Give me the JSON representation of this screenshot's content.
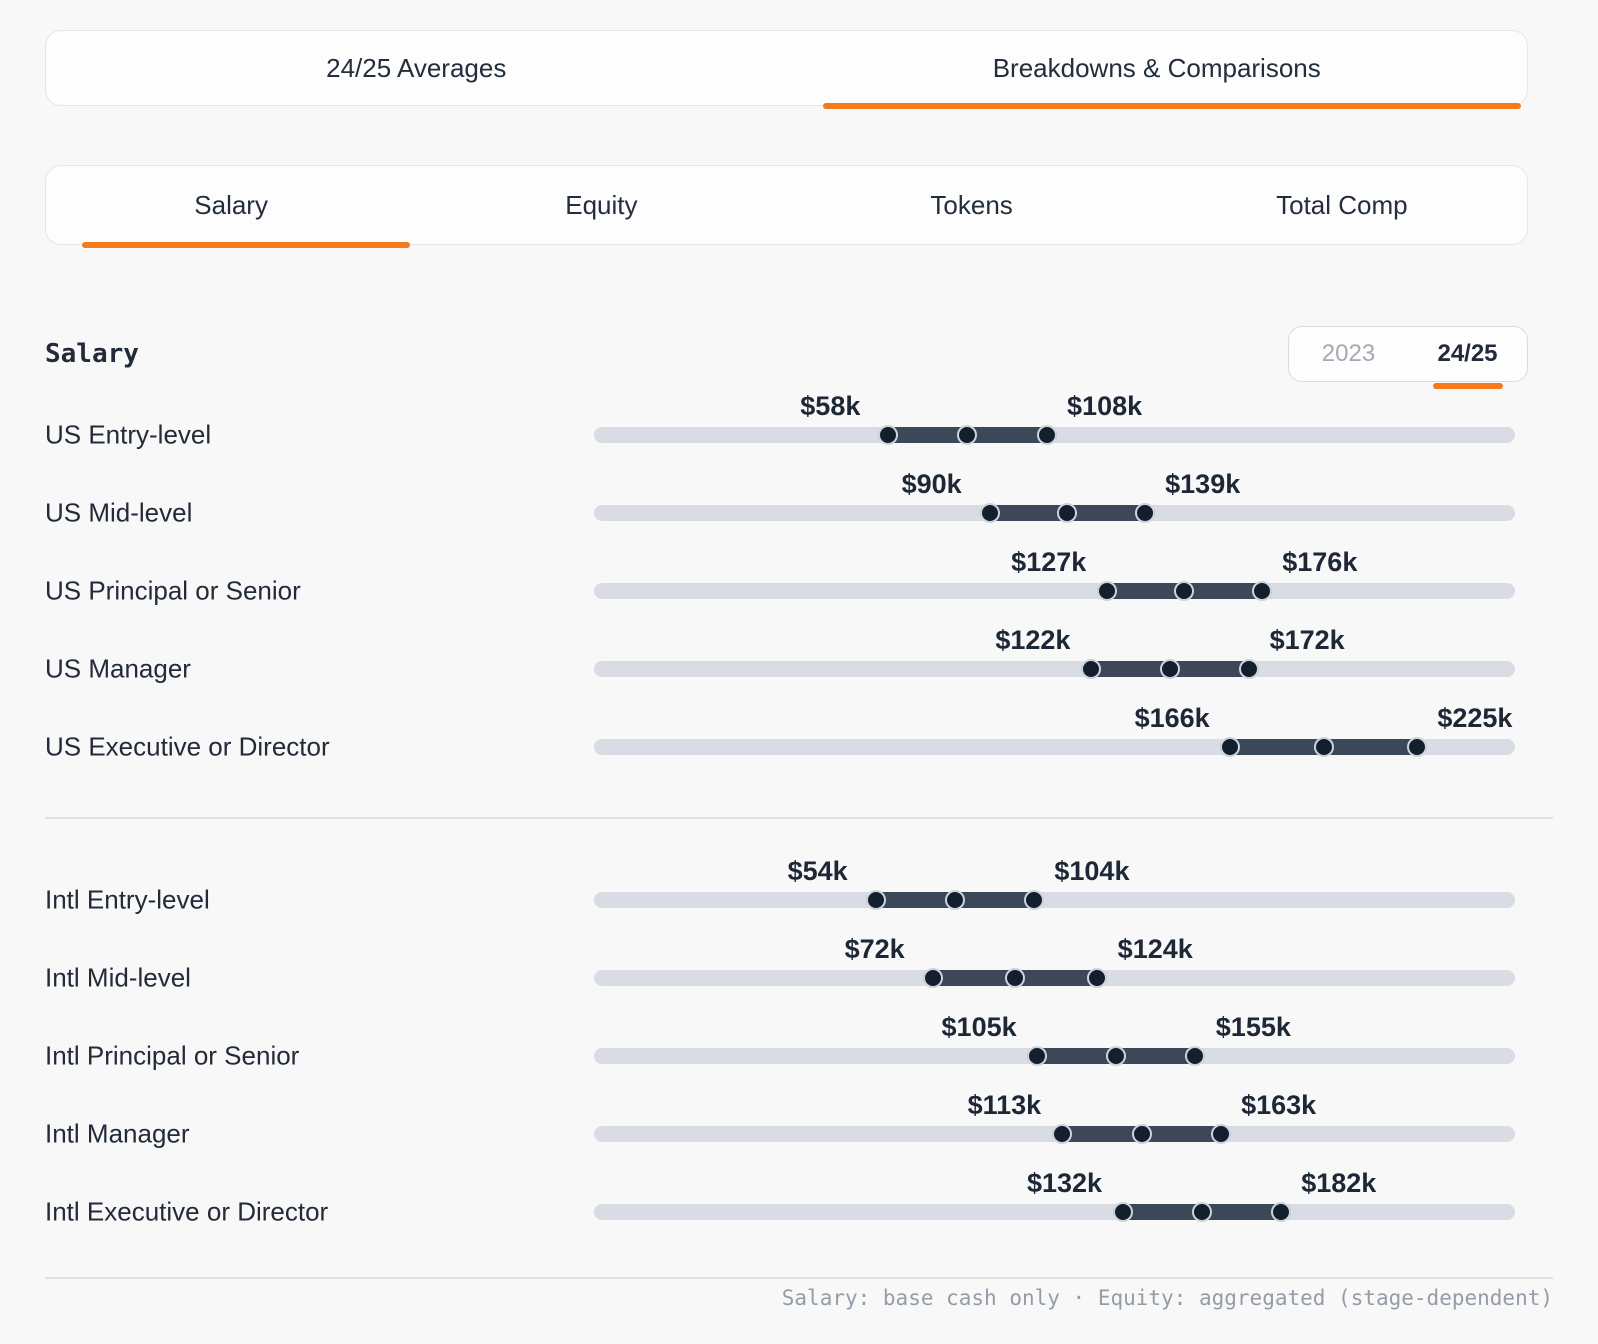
{
  "nav_tabs": {
    "items": [
      {
        "label": "24/25 Averages",
        "active": false
      },
      {
        "label": "Breakdowns & Comparisons",
        "active": true
      }
    ]
  },
  "metric_tabs": {
    "items": [
      {
        "label": "Salary",
        "active": true
      },
      {
        "label": "Equity",
        "active": false
      },
      {
        "label": "Tokens",
        "active": false
      },
      {
        "label": "Total Comp",
        "active": false
      }
    ]
  },
  "section": {
    "heading": "Salary"
  },
  "year_toggle": {
    "options": [
      {
        "label": "2023",
        "active": false
      },
      {
        "label": "24/25",
        "active": true
      }
    ]
  },
  "footer": {
    "note": "Salary: base cash only · Equity: aggregated (stage-dependent)"
  },
  "colors": {
    "accent_orange": "#f5791d",
    "track_gray": "#d9dde3",
    "range_bar": "#3c4757",
    "dot_fill": "#141f2d",
    "dot_ring": "#ccd4de",
    "text_dark": "#242d3b",
    "muted_gray": "#949ca7"
  },
  "chart_data": {
    "type": "bar",
    "subtype": "horizontal-range-dumbbell",
    "title": "Salary",
    "period": "24/25",
    "value_unit": "USD thousands",
    "axis_range_k": [
      -35,
      256
    ],
    "groups": [
      {
        "name": "US",
        "rows": [
          {
            "category": "US Entry-level",
            "min_k": 58,
            "max_k": 108,
            "min_label": "$58k",
            "max_label": "$108k"
          },
          {
            "category": "US Mid-level",
            "min_k": 90,
            "max_k": 139,
            "min_label": "$90k",
            "max_label": "$139k"
          },
          {
            "category": "US Principal or Senior",
            "min_k": 127,
            "max_k": 176,
            "min_label": "$127k",
            "max_label": "$176k"
          },
          {
            "category": "US Manager",
            "min_k": 122,
            "max_k": 172,
            "min_label": "$122k",
            "max_label": "$172k"
          },
          {
            "category": "US Executive or Director",
            "min_k": 166,
            "max_k": 225,
            "min_label": "$166k",
            "max_label": "$225k"
          }
        ]
      },
      {
        "name": "Intl",
        "rows": [
          {
            "category": "Intl Entry-level",
            "min_k": 54,
            "max_k": 104,
            "min_label": "$54k",
            "max_label": "$104k"
          },
          {
            "category": "Intl Mid-level",
            "min_k": 72,
            "max_k": 124,
            "min_label": "$72k",
            "max_label": "$124k"
          },
          {
            "category": "Intl Principal or Senior",
            "min_k": 105,
            "max_k": 155,
            "min_label": "$105k",
            "max_label": "$155k"
          },
          {
            "category": "Intl Manager",
            "min_k": 113,
            "max_k": 163,
            "min_label": "$113k",
            "max_label": "$163k"
          },
          {
            "category": "Intl Executive or Director",
            "min_k": 132,
            "max_k": 182,
            "min_label": "$132k",
            "max_label": "$182k"
          }
        ]
      }
    ]
  }
}
